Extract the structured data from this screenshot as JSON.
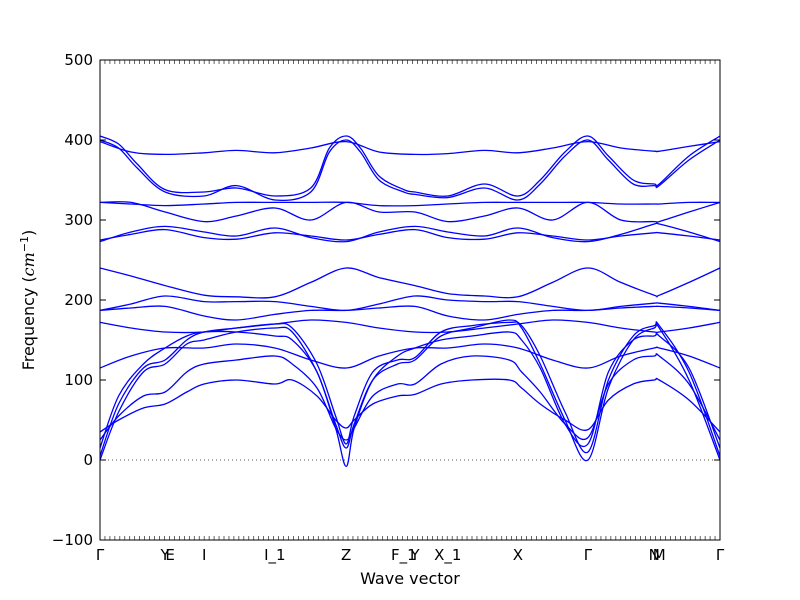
{
  "chart_data": {
    "type": "line",
    "title": "",
    "xlabel": "Wave vector",
    "ylabel_prefix": "Frequency (",
    "ylabel_unit": "cm",
    "ylabel_exp": "−1",
    "ylabel_suffix": ")",
    "ylim": [
      -100,
      500
    ],
    "yticks": [
      -100,
      0,
      100,
      200,
      300,
      400,
      500
    ],
    "grid": false,
    "line_color": "#0000ff",
    "zero_line_color": "#555555",
    "xlim": [
      0,
      100
    ],
    "xticks": [
      {
        "x": 0,
        "label": "Γ"
      },
      {
        "x": 10.5,
        "label": "Y"
      },
      {
        "x": 11.3,
        "label": "E"
      },
      {
        "x": 16.8,
        "label": "I"
      },
      {
        "x": 28.2,
        "label": "I_1"
      },
      {
        "x": 39.7,
        "label": "Z"
      },
      {
        "x": 49.0,
        "label": "F_1"
      },
      {
        "x": 50.8,
        "label": "Y"
      },
      {
        "x": 56.1,
        "label": "X_1"
      },
      {
        "x": 67.4,
        "label": "X"
      },
      {
        "x": 78.7,
        "label": "Γ"
      },
      {
        "x": 89.4,
        "label": "N"
      },
      {
        "x": 90.2,
        "label": "M"
      },
      {
        "x": 100,
        "label": "Γ"
      }
    ],
    "series": [
      {
        "x": [
          0,
          3,
          6,
          10.5,
          16.8,
          22,
          28.2,
          34,
          37,
          39.7,
          42,
          45,
          49,
          50.8,
          56.1,
          62,
          67.4,
          71,
          75,
          78.7,
          82,
          86,
          89.4,
          90.2,
          95,
          100
        ],
        "y": [
          405,
          395,
          370,
          338,
          335,
          340,
          330,
          340,
          390,
          405,
          390,
          355,
          338,
          335,
          330,
          345,
          330,
          350,
          385,
          405,
          380,
          350,
          345,
          345,
          380,
          405
        ]
      },
      {
        "x": [
          0,
          3,
          6,
          10.5,
          16.8,
          22,
          28.2,
          34,
          37,
          39.7,
          42,
          45,
          49,
          50.8,
          56.1,
          62,
          67.4,
          71,
          75,
          78.7,
          82,
          86,
          89.4,
          90.2,
          95,
          100
        ],
        "y": [
          400,
          390,
          365,
          335,
          330,
          343,
          325,
          335,
          385,
          400,
          385,
          350,
          335,
          332,
          328,
          340,
          325,
          345,
          380,
          400,
          375,
          345,
          343,
          343,
          375,
          400
        ]
      },
      {
        "x": [
          0,
          5,
          10.5,
          16.8,
          22,
          28.2,
          34,
          39.7,
          45,
          50.8,
          56.1,
          62,
          67.4,
          73,
          78.7,
          84,
          89.4,
          90.2,
          95,
          100
        ],
        "y": [
          398,
          385,
          382,
          384,
          387,
          384,
          390,
          398,
          385,
          382,
          383,
          387,
          384,
          390,
          398,
          390,
          386,
          386,
          392,
          398
        ]
      },
      {
        "x": [
          0,
          5,
          10.5,
          16.8,
          22,
          28.2,
          34,
          39.7,
          45,
          50.8,
          56.1,
          62,
          67.4,
          73,
          78.7,
          84,
          89.4,
          90.2,
          95,
          100
        ],
        "y": [
          322,
          322,
          310,
          298,
          305,
          315,
          300,
          322,
          310,
          310,
          298,
          305,
          315,
          300,
          322,
          300,
          298,
          298,
          310,
          322
        ]
      },
      {
        "x": [
          0,
          5,
          10.5,
          16.8,
          22,
          28.2,
          34,
          39.7,
          45,
          50.8,
          56.1,
          62,
          67.4,
          73,
          78.7,
          84,
          89.4,
          90.2,
          95,
          100
        ],
        "y": [
          322,
          320,
          318,
          320,
          322,
          322,
          322,
          322,
          318,
          318,
          320,
          322,
          322,
          322,
          322,
          320,
          320,
          320,
          322,
          322
        ]
      },
      {
        "x": [
          0,
          5,
          10.5,
          16.8,
          22,
          28.2,
          34,
          39.7,
          45,
          50.8,
          56.1,
          62,
          67.4,
          73,
          78.7,
          84,
          89.4,
          90.2,
          95,
          100
        ],
        "y": [
          273,
          285,
          292,
          285,
          280,
          290,
          278,
          273,
          285,
          292,
          285,
          280,
          290,
          278,
          273,
          282,
          295,
          295,
          285,
          273
        ]
      },
      {
        "x": [
          0,
          5,
          10.5,
          16.8,
          22,
          28.2,
          34,
          39.7,
          45,
          50.8,
          56.1,
          62,
          67.4,
          73,
          78.7,
          84,
          89.4,
          90.2,
          95,
          100
        ],
        "y": [
          275,
          282,
          288,
          278,
          276,
          284,
          280,
          275,
          282,
          288,
          278,
          276,
          284,
          280,
          275,
          280,
          284,
          284,
          280,
          275
        ]
      },
      {
        "x": [
          0,
          5,
          10.5,
          16.8,
          22,
          28.2,
          34,
          39.7,
          45,
          50.8,
          56.1,
          62,
          67.4,
          73,
          78.7,
          84,
          89.4,
          90.2,
          95,
          100
        ],
        "y": [
          240,
          230,
          218,
          206,
          204,
          204,
          222,
          240,
          228,
          218,
          208,
          205,
          204,
          222,
          240,
          222,
          206,
          206,
          222,
          240
        ]
      },
      {
        "x": [
          0,
          5,
          10.5,
          16.8,
          22,
          28.2,
          34,
          39.7,
          45,
          50.8,
          56.1,
          62,
          67.4,
          73,
          78.7,
          84,
          89.4,
          90.2,
          95,
          100
        ],
        "y": [
          187,
          195,
          205,
          198,
          198,
          198,
          192,
          187,
          195,
          205,
          200,
          198,
          198,
          192,
          187,
          192,
          196,
          196,
          192,
          187
        ]
      },
      {
        "x": [
          0,
          5,
          10.5,
          16.8,
          22,
          28.2,
          34,
          39.7,
          45,
          50.8,
          56.1,
          62,
          67.4,
          73,
          78.7,
          84,
          89.4,
          90.2,
          95,
          100
        ],
        "y": [
          187,
          190,
          192,
          180,
          175,
          182,
          187,
          187,
          190,
          192,
          180,
          175,
          182,
          187,
          187,
          190,
          192,
          192,
          190,
          187
        ]
      },
      {
        "x": [
          0,
          5,
          10.5,
          16.8,
          22,
          28.2,
          34,
          39.7,
          45,
          50.8,
          56.1,
          62,
          67.4,
          73,
          78.7,
          84,
          89.4,
          90.2,
          95,
          100
        ],
        "y": [
          172,
          165,
          160,
          160,
          165,
          170,
          175,
          172,
          165,
          160,
          160,
          165,
          170,
          175,
          172,
          165,
          160,
          160,
          165,
          172
        ]
      },
      {
        "x": [
          0,
          5,
          10.5,
          16.8,
          22,
          28.2,
          34,
          39.7,
          45,
          50.8,
          56.1,
          62,
          67.4,
          73,
          78.7,
          84,
          89.4,
          90.2,
          95,
          100
        ],
        "y": [
          115,
          130,
          140,
          140,
          145,
          140,
          125,
          115,
          130,
          140,
          140,
          145,
          140,
          125,
          115,
          130,
          140,
          140,
          130,
          115
        ]
      },
      {
        "x": [
          0,
          3,
          7,
          10.5,
          14,
          16.8,
          22,
          28.2,
          31,
          35,
          38,
          39.7,
          41,
          44,
          48,
          50.8,
          55,
          60,
          66,
          68,
          71,
          75,
          78.7,
          82,
          86,
          89.4,
          90.2,
          95,
          100
        ],
        "y": [
          0,
          60,
          110,
          120,
          145,
          150,
          160,
          165,
          160,
          110,
          45,
          15,
          45,
          100,
          120,
          125,
          155,
          165,
          175,
          165,
          120,
          50,
          0,
          90,
          150,
          165,
          165,
          100,
          0
        ]
      },
      {
        "x": [
          0,
          3,
          7,
          10.5,
          14,
          16.8,
          22,
          28.2,
          31,
          35,
          38,
          39.7,
          41,
          44,
          48,
          50.8,
          55,
          60,
          66,
          68,
          71,
          75,
          78.7,
          82,
          86,
          89.4,
          90.2,
          95,
          100
        ],
        "y": [
          5,
          70,
          115,
          125,
          150,
          160,
          165,
          170,
          165,
          120,
          55,
          20,
          55,
          110,
          125,
          128,
          160,
          168,
          172,
          168,
          130,
          60,
          10,
          100,
          155,
          168,
          168,
          110,
          5
        ]
      },
      {
        "x": [
          0,
          3,
          7,
          10.5,
          14,
          16.8,
          22,
          28.2,
          31,
          35,
          38,
          39.7,
          41,
          44,
          48,
          50.8,
          55,
          60,
          66,
          68,
          71,
          75,
          78.7,
          82,
          86,
          89.4,
          90.2,
          95,
          100
        ],
        "y": [
          15,
          80,
          120,
          140,
          155,
          160,
          160,
          155,
          150,
          110,
          40,
          -8,
          40,
          100,
          130,
          140,
          150,
          155,
          160,
          150,
          115,
          45,
          20,
          110,
          150,
          155,
          155,
          115,
          15
        ]
      },
      {
        "x": [
          0,
          3,
          7,
          10.5,
          14,
          16.8,
          22,
          28.2,
          31,
          35,
          38,
          39.7,
          41,
          44,
          48,
          50.8,
          55,
          60,
          66,
          68,
          71,
          75,
          78.7,
          82,
          86,
          89.4,
          90.2,
          95,
          100
        ],
        "y": [
          25,
          55,
          80,
          85,
          110,
          120,
          125,
          130,
          120,
          90,
          40,
          25,
          40,
          80,
          95,
          95,
          120,
          130,
          125,
          110,
          85,
          45,
          28,
          95,
          125,
          130,
          130,
          95,
          25
        ]
      },
      {
        "x": [
          0,
          3,
          7,
          10.5,
          14,
          16.8,
          22,
          28.2,
          31,
          35,
          38,
          39.7,
          41,
          44,
          48,
          50.8,
          55,
          60,
          66,
          68,
          71,
          75,
          78.7,
          82,
          86,
          89.4,
          90.2,
          95,
          100
        ],
        "y": [
          35,
          50,
          65,
          70,
          85,
          95,
          100,
          95,
          100,
          80,
          50,
          40,
          50,
          70,
          80,
          82,
          95,
          100,
          100,
          90,
          70,
          50,
          38,
          75,
          95,
          100,
          100,
          75,
          35
        ]
      }
    ]
  }
}
